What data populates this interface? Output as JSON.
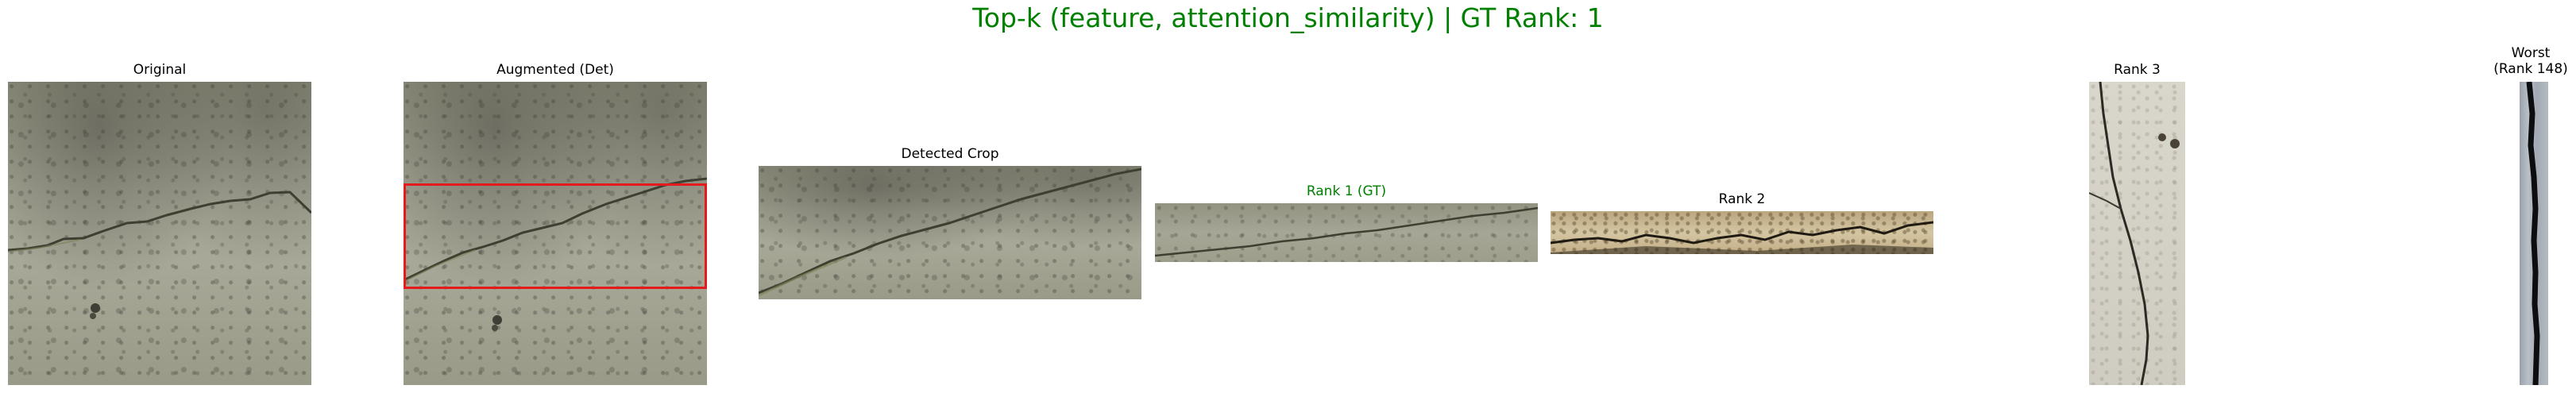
{
  "title": "Top-k (feature, attention_similarity) | GT Rank: 1",
  "title_color": "#008000",
  "panels": {
    "original": {
      "label": "Original"
    },
    "augmented": {
      "label": "Augmented (Det)",
      "box_color": "#e41a1c"
    },
    "detected": {
      "label": "Detected Crop"
    },
    "rank1": {
      "label": "Rank 1 (GT)",
      "color": "#008000"
    },
    "rank2": {
      "label": "Rank 2"
    },
    "rank3": {
      "label": "Rank 3"
    },
    "worst": {
      "label": "Worst\n(Rank 148)"
    }
  }
}
